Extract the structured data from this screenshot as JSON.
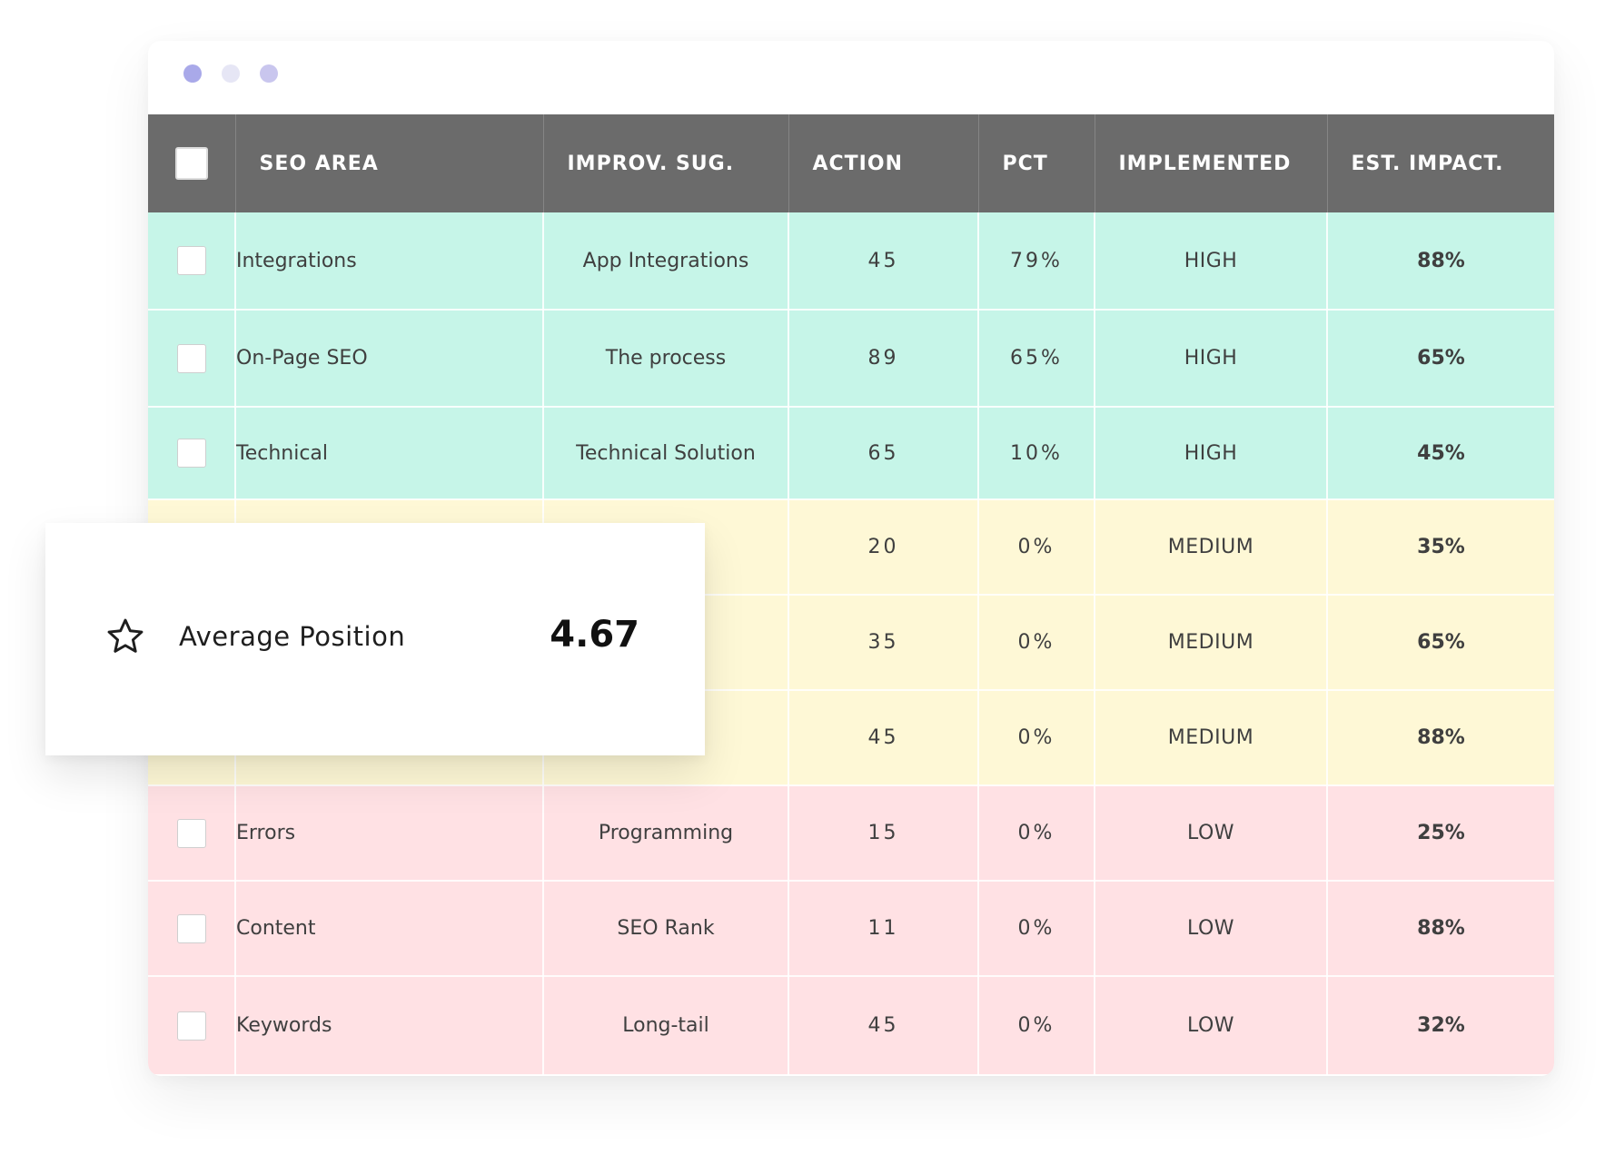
{
  "colors": {
    "header_bg": "#6b6b6b",
    "high_row": "#c6f5e8",
    "medium_row": "#fef8d6",
    "low_row": "#ffe1e4",
    "dot_1": "#a9a9e9",
    "dot_2": "#e6e6f5",
    "dot_3": "#c9c6ee"
  },
  "window": {
    "dots": [
      "window-dot-1",
      "window-dot-2",
      "window-dot-3"
    ]
  },
  "table": {
    "headers": [
      "SEO AREA",
      "IMPROV. SUG.",
      "ACTION",
      "PCT",
      "IMPLEMENTED",
      "EST. IMPACT."
    ],
    "rows": [
      {
        "area": "Integrations",
        "suggestion": "App Integrations",
        "action": "45",
        "pct": "79%",
        "implemented": "HIGH",
        "impact": "88%"
      },
      {
        "area": "On-Page SEO",
        "suggestion": "The process",
        "action": "89",
        "pct": "65%",
        "implemented": "HIGH",
        "impact": "65%"
      },
      {
        "area": "Technical",
        "suggestion": "Technical Solution",
        "action": "65",
        "pct": "10%",
        "implemented": "HIGH",
        "impact": "45%"
      },
      {
        "area": "",
        "suggestion": "",
        "action": "20",
        "pct": "0%",
        "implemented": "MEDIUM",
        "impact": "35%"
      },
      {
        "area": "",
        "suggestion": "",
        "action": "35",
        "pct": "0%",
        "implemented": "MEDIUM",
        "impact": "65%"
      },
      {
        "area": "",
        "suggestion": "",
        "action": "45",
        "pct": "0%",
        "implemented": "MEDIUM",
        "impact": "88%"
      },
      {
        "area": "Errors",
        "suggestion": "Programming",
        "action": "15",
        "pct": "0%",
        "implemented": "LOW",
        "impact": "25%"
      },
      {
        "area": "Content",
        "suggestion": "SEO Rank",
        "action": "11",
        "pct": "0%",
        "implemented": "LOW",
        "impact": "88%"
      },
      {
        "area": "Keywords",
        "suggestion": "Long-tail",
        "action": "45",
        "pct": "0%",
        "implemented": "LOW",
        "impact": "32%"
      }
    ]
  },
  "card": {
    "icon": "star-icon",
    "label": "Average Position",
    "value": "4.67"
  }
}
